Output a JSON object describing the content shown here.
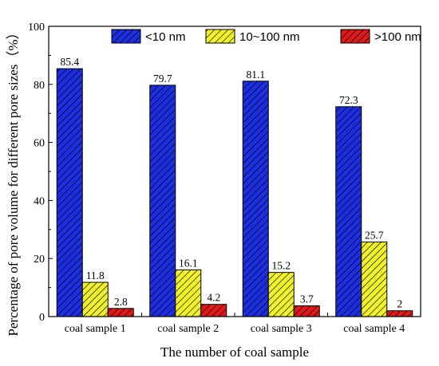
{
  "chart_data": {
    "type": "bar",
    "categories": [
      "coal sample 1",
      "coal sample 2",
      "coal sample 3",
      "coal sample 4"
    ],
    "series": [
      {
        "name": "<10 nm",
        "values": [
          85.4,
          79.7,
          81.1,
          72.3
        ],
        "color": "#1d2fe0",
        "hatch": "#000000"
      },
      {
        "name": "10~100 nm",
        "values": [
          11.8,
          16.1,
          15.2,
          25.7
        ],
        "color": "#f2f22a",
        "hatch": "#000000"
      },
      {
        "name": ">100 nm",
        "values": [
          2.8,
          4.2,
          3.7,
          2
        ],
        "color": "#e01a1a",
        "hatch": "#000000"
      }
    ],
    "data_labels": [
      [
        "85.4",
        "79.7",
        "81.1",
        "72.3"
      ],
      [
        "11.8",
        "16.1",
        "15.2",
        "25.7"
      ],
      [
        "2.8",
        "4.2",
        "3.7",
        "2"
      ]
    ],
    "title": "",
    "xlabel": "The number of coal sample",
    "ylabel": "Percentage of pore volume for different pore sizes（%）",
    "ylim": [
      0,
      100
    ],
    "yticks": [
      "0",
      "20",
      "40",
      "60",
      "80",
      "100"
    ],
    "grid": false,
    "legend_position": "top-right"
  }
}
